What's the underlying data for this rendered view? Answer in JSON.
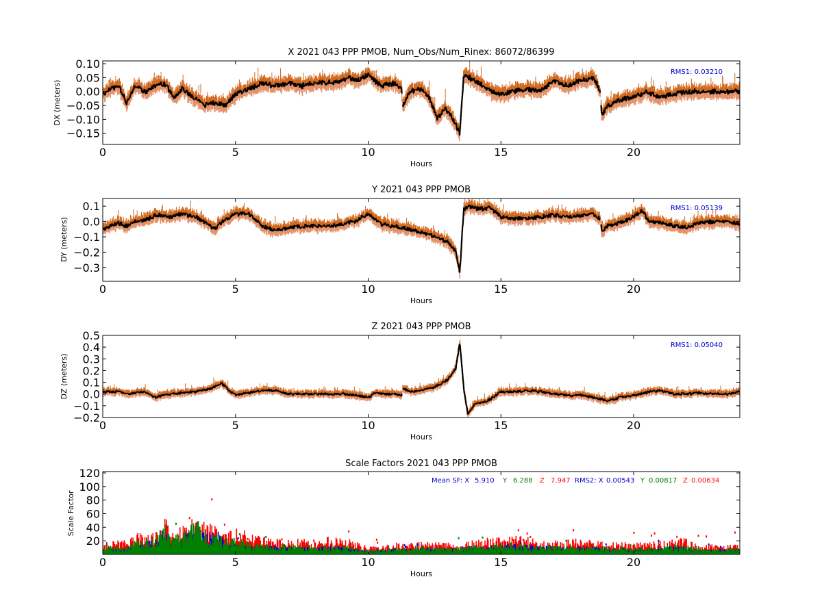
{
  "colors": {
    "x_series": "#d2691e",
    "x_band": "#e4936a",
    "center": "#000000",
    "rms": "#0000cc",
    "sf_x": "#0000cc",
    "sf_y": "#008000",
    "sf_z": "#ff0000"
  },
  "chart_data": [
    {
      "id": "dx",
      "type": "scatter",
      "title": "X 2021 043 PPP  PMOB, Num_Obs/Num_Rinex: 86072/86399",
      "xlabel": "Hours",
      "ylabel": "DX (meters)",
      "xlim": [
        0,
        24
      ],
      "ylim": [
        -0.19,
        0.11
      ],
      "xticks": [
        "0",
        "5",
        "10",
        "15",
        "20"
      ],
      "yticks": [
        "0.10",
        "0.05",
        "0.00",
        "−0.05",
        "−0.10",
        "−0.15"
      ],
      "ytick_values": [
        0.1,
        0.05,
        0.0,
        -0.05,
        -0.1,
        -0.15
      ],
      "annotation": "RMS1:  0.03210",
      "band_halfwidth": 0.02,
      "gaps": [
        [
          11.28,
          11.3
        ],
        [
          18.75,
          18.77
        ]
      ],
      "x": [
        0,
        0.3,
        0.6,
        0.9,
        1.2,
        1.6,
        2.0,
        2.3,
        2.7,
        3.0,
        3.4,
        3.8,
        4.2,
        4.6,
        5.0,
        5.5,
        6.0,
        6.5,
        7.0,
        7.5,
        8.0,
        8.5,
        9.0,
        9.3,
        9.6,
        10.0,
        10.5,
        11.0,
        11.25,
        11.3,
        11.6,
        12.0,
        12.3,
        12.6,
        12.9,
        13.2,
        13.45,
        13.6,
        13.8,
        14.2,
        14.6,
        15.0,
        15.5,
        16.0,
        16.5,
        17.0,
        17.5,
        18.0,
        18.5,
        18.75,
        18.8,
        19.0,
        19.5,
        20.0,
        20.5,
        21.0,
        21.5,
        22.0,
        22.5,
        23.0,
        23.5,
        24.0
      ],
      "y": [
        -0.01,
        0.01,
        0.02,
        -0.04,
        0.02,
        0.0,
        0.02,
        0.03,
        -0.02,
        0.01,
        -0.02,
        -0.05,
        -0.04,
        -0.05,
        -0.01,
        0.01,
        0.03,
        0.02,
        0.03,
        0.02,
        0.03,
        0.03,
        0.04,
        0.05,
        0.04,
        0.06,
        0.02,
        0.03,
        0.01,
        -0.05,
        0.0,
        0.01,
        -0.02,
        -0.1,
        -0.06,
        -0.1,
        -0.15,
        0.06,
        0.05,
        0.03,
        0.0,
        -0.01,
        0.0,
        0.01,
        0.0,
        0.04,
        0.02,
        0.04,
        0.05,
        0.0,
        -0.09,
        -0.05,
        -0.03,
        -0.02,
        0.0,
        -0.02,
        -0.01,
        0.0,
        0.0,
        0.0,
        0.0,
        0.0
      ]
    },
    {
      "id": "dy",
      "type": "scatter",
      "title": "Y 2021 043 PPP  PMOB",
      "xlabel": "Hours",
      "ylabel": "DY (meters)",
      "xlim": [
        0,
        24
      ],
      "ylim": [
        -0.39,
        0.15
      ],
      "xticks": [
        "0",
        "5",
        "10",
        "15",
        "20"
      ],
      "yticks": [
        "0.1",
        "0.0",
        "−0.1",
        "−0.2",
        "−0.3"
      ],
      "ytick_values": [
        0.1,
        0.0,
        -0.1,
        -0.2,
        -0.3
      ],
      "annotation": "RMS1:  0.05139",
      "band_halfwidth": 0.03,
      "gaps": [
        [
          18.75,
          18.77
        ]
      ],
      "x": [
        0,
        0.3,
        0.6,
        0.9,
        1.2,
        1.6,
        2.0,
        2.5,
        3.0,
        3.5,
        4.0,
        4.2,
        4.5,
        5.0,
        5.5,
        6.0,
        6.5,
        7.0,
        7.5,
        8.0,
        8.5,
        9.0,
        9.5,
        10.0,
        10.5,
        11.0,
        11.5,
        12.0,
        12.5,
        13.0,
        13.3,
        13.45,
        13.6,
        13.8,
        14.2,
        14.6,
        15.0,
        15.5,
        16.0,
        16.5,
        17.0,
        17.5,
        18.0,
        18.5,
        18.75,
        18.8,
        19.0,
        19.5,
        20.0,
        20.3,
        20.6,
        21.0,
        21.5,
        22.0,
        22.5,
        23.0,
        23.5,
        24.0
      ],
      "y": [
        -0.05,
        -0.03,
        -0.01,
        -0.03,
        0.0,
        0.01,
        0.04,
        0.03,
        0.05,
        0.03,
        -0.02,
        -0.05,
        0.0,
        0.05,
        0.05,
        -0.03,
        -0.06,
        -0.04,
        -0.03,
        -0.03,
        -0.03,
        -0.02,
        0.0,
        0.05,
        -0.02,
        -0.03,
        -0.05,
        -0.07,
        -0.1,
        -0.13,
        -0.2,
        -0.33,
        0.08,
        0.1,
        0.08,
        0.09,
        0.03,
        0.02,
        0.02,
        0.03,
        0.04,
        0.03,
        0.04,
        0.05,
        0.01,
        -0.07,
        -0.03,
        -0.01,
        0.03,
        0.07,
        0.0,
        -0.01,
        -0.03,
        -0.04,
        -0.01,
        0.0,
        0.0,
        -0.02
      ]
    },
    {
      "id": "dz",
      "type": "scatter",
      "title": "Z 2021 043 PPP  PMOB",
      "xlabel": "Hours",
      "ylabel": "DZ (meters)",
      "xlim": [
        0,
        24
      ],
      "ylim": [
        -0.2,
        0.5
      ],
      "xticks": [
        "0",
        "5",
        "10",
        "15",
        "20"
      ],
      "yticks": [
        "0.5",
        "0.4",
        "0.3",
        "0.2",
        "0.1",
        "0.0",
        "−0.1",
        "−0.2"
      ],
      "ytick_values": [
        0.5,
        0.4,
        0.3,
        0.2,
        0.1,
        0.0,
        -0.1,
        -0.2
      ],
      "annotation": "RMS1:  0.05040",
      "band_halfwidth": 0.025,
      "gaps": [
        [
          11.28,
          11.3
        ]
      ],
      "x": [
        0,
        0.5,
        1.0,
        1.5,
        2.0,
        2.5,
        3.0,
        3.5,
        4.0,
        4.5,
        4.7,
        5.0,
        5.5,
        6.0,
        6.5,
        7.0,
        7.5,
        8.0,
        8.5,
        9.0,
        9.5,
        10.0,
        10.3,
        10.6,
        11.0,
        11.25,
        11.3,
        11.6,
        12.0,
        12.5,
        13.0,
        13.3,
        13.45,
        13.6,
        13.75,
        14.0,
        14.5,
        15.0,
        15.5,
        16.0,
        16.5,
        17.0,
        17.5,
        18.0,
        18.5,
        19.0,
        19.5,
        20.0,
        20.3,
        20.6,
        21.0,
        21.5,
        22.0,
        22.5,
        23.0,
        23.5,
        24.0
      ],
      "y": [
        0.02,
        0.02,
        0.0,
        0.02,
        -0.03,
        0.0,
        0.01,
        0.02,
        0.04,
        0.09,
        0.04,
        -0.01,
        0.01,
        0.03,
        0.03,
        0.0,
        0.0,
        0.0,
        0.0,
        0.0,
        -0.01,
        -0.03,
        0.01,
        0.0,
        0.0,
        -0.01,
        0.05,
        0.02,
        0.03,
        0.06,
        0.12,
        0.22,
        0.44,
        0.05,
        -0.17,
        -0.09,
        -0.06,
        0.02,
        0.02,
        0.03,
        0.02,
        0.0,
        -0.01,
        -0.01,
        -0.03,
        -0.06,
        -0.03,
        -0.01,
        0.0,
        0.02,
        0.03,
        0.0,
        0.0,
        0.01,
        0.0,
        0.0,
        0.02
      ]
    },
    {
      "id": "sf",
      "type": "scatter",
      "title": "Scale Factors 2021 043 PPP  PMOB",
      "xlabel": "Hours",
      "ylabel": "Scale Factor",
      "xlim": [
        0,
        24
      ],
      "ylim": [
        0,
        122
      ],
      "xticks": [
        "0",
        "5",
        "10",
        "15",
        "20"
      ],
      "yticks": [
        "120",
        "100",
        "80",
        "60",
        "40",
        "20"
      ],
      "ytick_values": [
        120,
        100,
        80,
        60,
        40,
        20
      ],
      "legend": {
        "mean_label": "Mean SF: X",
        "mean_x": "5.910",
        "y_label": "Y",
        "mean_y": "6.288",
        "z_label": "Z",
        "mean_z": "7.947",
        "rms_label": "RMS2: X",
        "rms_x": "0.00543",
        "rms_y_label": "Y",
        "rms_y": "0.00817",
        "rms_z_label": "Z",
        "rms_z": "0.00634"
      },
      "x": [
        0,
        0.5,
        1.0,
        1.2,
        1.5,
        2.0,
        2.3,
        2.6,
        3.0,
        3.3,
        3.6,
        3.9,
        4.2,
        4.6,
        5.0,
        5.3,
        5.6,
        6.0,
        6.5,
        7.0,
        7.5,
        8.0,
        8.5,
        9.0,
        9.5,
        10.0,
        10.5,
        11.0,
        11.5,
        12.0,
        12.5,
        13.0,
        13.5,
        14.0,
        14.5,
        15.0,
        15.5,
        16.0,
        16.5,
        17.0,
        17.5,
        18.0,
        18.5,
        19.0,
        19.5,
        20.0,
        20.5,
        21.0,
        21.5,
        22.0,
        22.5,
        23.0,
        23.5,
        24.0
      ],
      "series": [
        {
          "label": "X",
          "values": [
            6,
            6,
            7,
            10,
            12,
            16,
            30,
            14,
            18,
            26,
            30,
            22,
            28,
            14,
            14,
            12,
            9,
            10,
            9,
            8,
            9,
            8,
            9,
            8,
            7,
            4,
            4,
            6,
            5,
            8,
            7,
            6,
            7,
            9,
            9,
            10,
            11,
            10,
            9,
            8,
            8,
            8,
            8,
            7,
            7,
            6,
            6,
            7,
            9,
            8,
            5,
            5,
            6,
            6
          ]
        },
        {
          "label": "Y",
          "values": [
            8,
            9,
            9,
            14,
            16,
            20,
            34,
            18,
            22,
            30,
            34,
            26,
            24,
            16,
            17,
            15,
            12,
            12,
            11,
            10,
            10,
            9,
            10,
            9,
            8,
            5,
            5,
            7,
            6,
            9,
            8,
            7,
            7,
            10,
            10,
            11,
            12,
            11,
            10,
            9,
            9,
            9,
            9,
            8,
            8,
            7,
            7,
            8,
            10,
            9,
            6,
            6,
            7,
            7
          ]
        },
        {
          "label": "Z",
          "values": [
            12,
            14,
            14,
            26,
            20,
            24,
            40,
            24,
            28,
            36,
            44,
            32,
            30,
            24,
            26,
            24,
            20,
            18,
            16,
            15,
            16,
            14,
            18,
            20,
            15,
            8,
            8,
            12,
            10,
            16,
            14,
            12,
            10,
            16,
            17,
            18,
            20,
            18,
            14,
            14,
            16,
            16,
            14,
            12,
            12,
            12,
            12,
            14,
            18,
            16,
            10,
            10,
            10,
            10
          ]
        }
      ]
    }
  ]
}
